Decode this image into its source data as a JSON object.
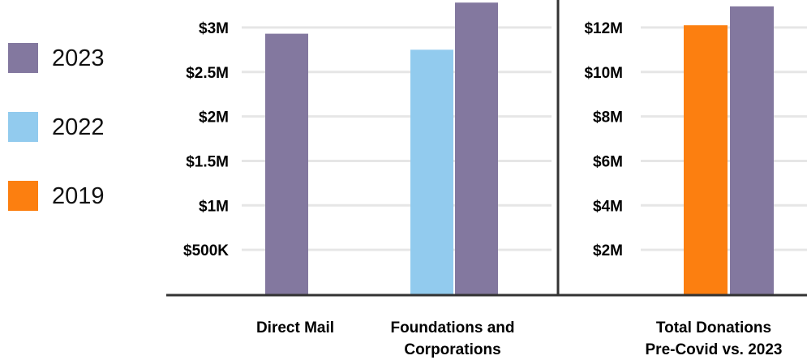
{
  "legend": [
    {
      "name": "2023",
      "color": "#83789f"
    },
    {
      "name": "2022",
      "color": "#92cbee"
    },
    {
      "name": "2019",
      "color": "#fc7f10"
    }
  ],
  "chart_data": [
    {
      "type": "bar",
      "categories": [
        [
          "Direct Mail"
        ],
        [
          "Foundations and",
          "Corporations"
        ]
      ],
      "series": [
        {
          "name": "2022",
          "values": [
            null,
            2.75
          ]
        },
        {
          "name": "2023",
          "values": [
            2.93,
            3.28
          ]
        }
      ],
      "ylim": [
        0,
        3.3
      ],
      "yticks": [
        0.5,
        1,
        1.5,
        2,
        2.5,
        3
      ],
      "ytick_labels": [
        "$500K",
        "$1M",
        "$1.5M",
        "$2M",
        "$2.5M",
        "$3M"
      ],
      "grid": true,
      "legend_position": "left"
    },
    {
      "type": "bar",
      "categories": [
        [
          "Total Donations",
          "Pre-Covid vs. 2023"
        ]
      ],
      "series": [
        {
          "name": "2019",
          "values": [
            12.1
          ]
        },
        {
          "name": "2023",
          "values": [
            12.95
          ]
        }
      ],
      "ylim": [
        0,
        13.2
      ],
      "yticks": [
        2,
        4,
        6,
        8,
        10,
        12
      ],
      "ytick_labels": [
        "$2M",
        "$4M",
        "$6M",
        "$8M",
        "$10M",
        "$12M"
      ],
      "grid": true,
      "legend_position": "left"
    }
  ]
}
